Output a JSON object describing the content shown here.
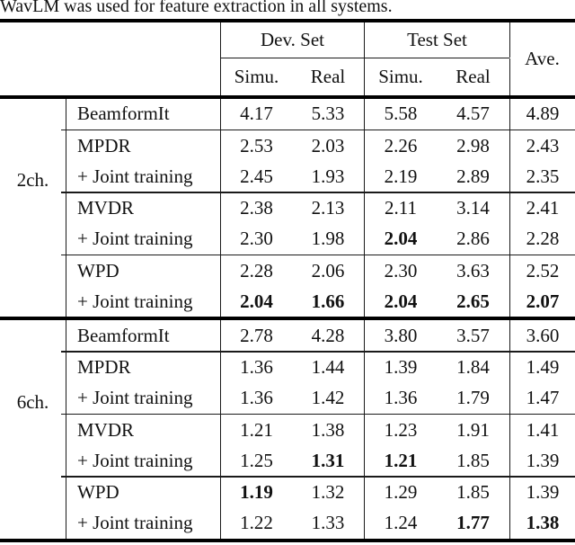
{
  "caption": "WavLM was used for feature extraction in all systems.",
  "colors": {
    "text": "#111111",
    "rule": "#000000",
    "background": "#ffffff"
  },
  "table": {
    "header": {
      "dev_set": "Dev. Set",
      "test_set": "Test Set",
      "ave": "Ave.",
      "sub": [
        "Simu.",
        "Real",
        "Simu.",
        "Real"
      ]
    },
    "groups": [
      {
        "label": "2ch.",
        "blocks": [
          [
            {
              "method": "BeamformIt",
              "values": [
                "4.17",
                "5.33",
                "5.58",
                "4.57",
                "4.89"
              ],
              "bold": []
            }
          ],
          [
            {
              "method": "MPDR",
              "values": [
                "2.53",
                "2.03",
                "2.26",
                "2.98",
                "2.43"
              ],
              "bold": []
            },
            {
              "method": "+ Joint training",
              "values": [
                "2.45",
                "1.93",
                "2.19",
                "2.89",
                "2.35"
              ],
              "bold": []
            }
          ],
          [
            {
              "method": "MVDR",
              "values": [
                "2.38",
                "2.13",
                "2.11",
                "3.14",
                "2.41"
              ],
              "bold": []
            },
            {
              "method": "+ Joint training",
              "values": [
                "2.30",
                "1.98",
                "2.04",
                "2.86",
                "2.28"
              ],
              "bold": [
                2
              ]
            }
          ],
          [
            {
              "method": "WPD",
              "values": [
                "2.28",
                "2.06",
                "2.30",
                "3.63",
                "2.52"
              ],
              "bold": []
            },
            {
              "method": "+ Joint training",
              "values": [
                "2.04",
                "1.66",
                "2.04",
                "2.65",
                "2.07"
              ],
              "bold": [
                0,
                1,
                2,
                3,
                4
              ]
            }
          ]
        ]
      },
      {
        "label": "6ch.",
        "blocks": [
          [
            {
              "method": "BeamformIt",
              "values": [
                "2.78",
                "4.28",
                "3.80",
                "3.57",
                "3.60"
              ],
              "bold": []
            }
          ],
          [
            {
              "method": "MPDR",
              "values": [
                "1.36",
                "1.44",
                "1.39",
                "1.84",
                "1.49"
              ],
              "bold": []
            },
            {
              "method": "+ Joint training",
              "values": [
                "1.36",
                "1.42",
                "1.36",
                "1.79",
                "1.47"
              ],
              "bold": []
            }
          ],
          [
            {
              "method": "MVDR",
              "values": [
                "1.21",
                "1.38",
                "1.23",
                "1.91",
                "1.41"
              ],
              "bold": []
            },
            {
              "method": "+ Joint training",
              "values": [
                "1.25",
                "1.31",
                "1.21",
                "1.85",
                "1.39"
              ],
              "bold": [
                1,
                2
              ]
            }
          ],
          [
            {
              "method": "WPD",
              "values": [
                "1.19",
                "1.32",
                "1.29",
                "1.85",
                "1.39"
              ],
              "bold": [
                0
              ]
            },
            {
              "method": "+ Joint training",
              "values": [
                "1.22",
                "1.33",
                "1.24",
                "1.77",
                "1.38"
              ],
              "bold": [
                3,
                4
              ]
            }
          ]
        ]
      }
    ]
  }
}
